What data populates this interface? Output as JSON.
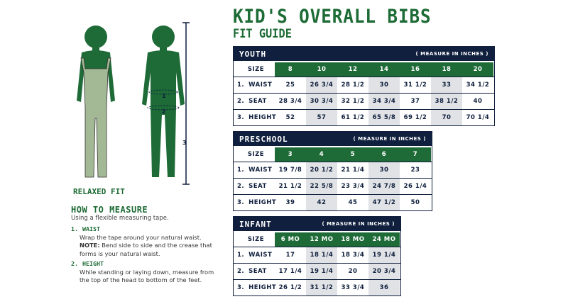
{
  "header": {
    "title": "KID'S OVERALL BIBS",
    "subtitle": "FIT GUIDE"
  },
  "figure": {
    "caption": "RELAXED FIT",
    "markers": [
      "1",
      "2",
      "3"
    ]
  },
  "how_to": {
    "title": "HOW TO MEASURE",
    "subtitle": "Using a flexible measuring tape.",
    "items": [
      {
        "number": "1.",
        "title": "WAIST",
        "text": "Wrap the tape around your natural waist.",
        "note_label": "NOTE:",
        "note": "Bend side to side and the crease that forms is your natural waist."
      },
      {
        "number": "2.",
        "title": "HEIGHT",
        "text": "While standing or laying down, measure from the top of the head to bottom of the feet."
      }
    ]
  },
  "tables": [
    {
      "title": "YOUTH",
      "note": "( MEASURE IN INCHES )",
      "size_label": "SIZE",
      "sizes": [
        "8",
        "10",
        "12",
        "14",
        "16",
        "18",
        "20"
      ],
      "rows": [
        {
          "number": "1.",
          "label": "WAIST",
          "values": [
            "25",
            "26 3/4",
            "28 1/2",
            "30",
            "31 1/2",
            "33",
            "34 1/2"
          ]
        },
        {
          "number": "2.",
          "label": "SEAT",
          "values": [
            "28 3/4",
            "30 3/4",
            "32 1/2",
            "34 3/4",
            "37",
            "38 1/2",
            "40"
          ]
        },
        {
          "number": "3.",
          "label": "HEIGHT",
          "values": [
            "52",
            "57",
            "61 1/2",
            "65 5/8",
            "69 1/2",
            "70",
            "70 1/4"
          ]
        }
      ]
    },
    {
      "title": "PRESCHOOL",
      "note": "( MEASURE IN INCHES )",
      "size_label": "SIZE",
      "sizes": [
        "3",
        "4",
        "5",
        "6",
        "7"
      ],
      "rows": [
        {
          "number": "1.",
          "label": "WAIST",
          "values": [
            "19 7/8",
            "20 1/2",
            "21 1/4",
            "30",
            "23"
          ]
        },
        {
          "number": "2.",
          "label": "SEAT",
          "values": [
            "21 1/2",
            "22 5/8",
            "23 3/4",
            "24 7/8",
            "26 1/4"
          ]
        },
        {
          "number": "3.",
          "label": "HEIGHT",
          "values": [
            "39",
            "42",
            "45",
            "47 1/2",
            "50"
          ]
        }
      ]
    },
    {
      "title": "INFANT",
      "note": "( MEASURE IN INCHES )",
      "size_label": "SIZE",
      "sizes": [
        "6 MO",
        "12 MO",
        "18 MO",
        "24 MO"
      ],
      "rows": [
        {
          "number": "1.",
          "label": "WAIST",
          "values": [
            "17",
            "18 1/4",
            "18 3/4",
            "19 1/4"
          ]
        },
        {
          "number": "2.",
          "label": "SEAT",
          "values": [
            "17 1/4",
            "19 1/4",
            "20",
            "20 3/4"
          ]
        },
        {
          "number": "3.",
          "label": "HEIGHT",
          "values": [
            "26 1/2",
            "31 1/2",
            "33 3/4",
            "36"
          ]
        }
      ]
    }
  ]
}
